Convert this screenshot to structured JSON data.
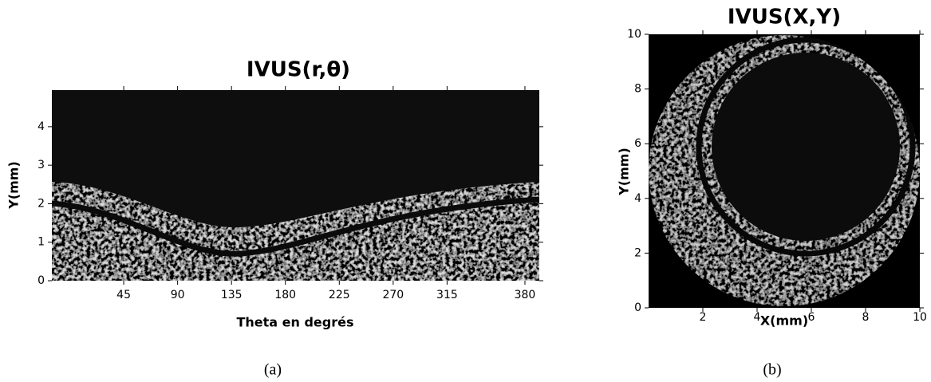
{
  "panels": [
    {
      "title": "IVUS(r,θ)",
      "x_label": "Theta en degrés",
      "y_label": "Y(mm)",
      "xlim": [
        -15,
        392
      ],
      "ylim": [
        0,
        4.95
      ],
      "xticks": [
        45,
        90,
        135,
        180,
        225,
        270,
        315,
        380
      ],
      "yticks": [
        0,
        1,
        2,
        3,
        4
      ],
      "caption": "(a)"
    },
    {
      "title": "IVUS(X,Y)",
      "x_label": "X(mm)",
      "y_label": "Y(mm)",
      "xlim": [
        0,
        10
      ],
      "ylim": [
        0,
        10
      ],
      "xticks": [
        2,
        4,
        6,
        8,
        10
      ],
      "yticks": [
        0,
        2,
        4,
        6,
        8,
        10
      ],
      "caption": "(b)"
    }
  ]
}
